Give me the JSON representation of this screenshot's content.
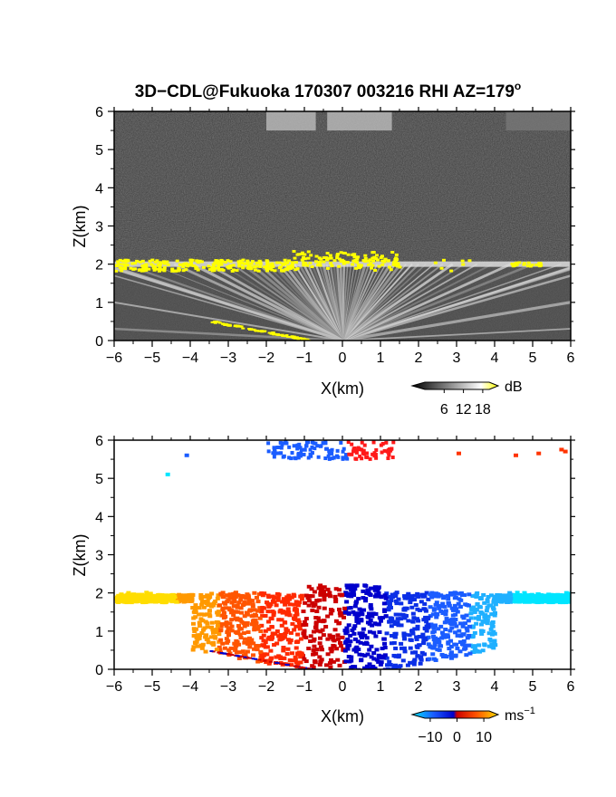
{
  "title": {
    "main": "3D−CDL@Fukuoka 170307 003216 RHI AZ=179",
    "sup": "o"
  },
  "chart_data": [
    {
      "type": "heatmap",
      "name": "reflectivity",
      "xlabel": "X(km)",
      "ylabel": "Z(km)",
      "xlim": [
        -6,
        6
      ],
      "ylim": [
        0,
        6
      ],
      "xticks": [
        "−6",
        "−5",
        "−4",
        "−3",
        "−2",
        "−1",
        "0",
        "1",
        "2",
        "3",
        "4",
        "5",
        "6"
      ],
      "yticks": [
        "0",
        "1",
        "2",
        "3",
        "4",
        "5",
        "6"
      ],
      "colorbar": {
        "unit": "dB",
        "tick_labels": [
          "6",
          "12",
          "18"
        ],
        "tick_values": [
          6,
          12,
          18
        ],
        "range": [
          0,
          20
        ],
        "colors": [
          "#000000",
          "#ffffff",
          "#ffff00"
        ]
      },
      "features": {
        "boundary_layer_top_km": 2.0,
        "high_signal_km": 2.0,
        "cloud_top_band_km": [
          5.5,
          6.0
        ],
        "background": "#3a3a3a",
        "highlight_color": "#ffff00"
      }
    },
    {
      "type": "heatmap",
      "name": "doppler_velocity",
      "xlabel": "X(km)",
      "ylabel": "Z(km)",
      "xlim": [
        -6,
        6
      ],
      "ylim": [
        0,
        6
      ],
      "xticks": [
        "−6",
        "−5",
        "−4",
        "−3",
        "−2",
        "−1",
        "0",
        "1",
        "2",
        "3",
        "4",
        "5",
        "6"
      ],
      "yticks": [
        "0",
        "1",
        "2",
        "3",
        "4",
        "5",
        "6"
      ],
      "colorbar": {
        "unit": "ms",
        "unit_sup": "−1",
        "tick_labels": [
          "−10",
          "0",
          "10"
        ],
        "tick_values": [
          -10,
          0,
          10
        ],
        "range": [
          -12,
          12
        ],
        "colors": [
          "#00e5ff",
          "#1a5cff",
          "#0000cc",
          "#cc0000",
          "#ff5500",
          "#ffdd00"
        ]
      },
      "features": {
        "boundary_layer_top_km": 2.0,
        "negative_side": "x>0 (blue)",
        "positive_side": "x<0 (red/yellow)",
        "upper_echoes_km": [
          5.5,
          6.0
        ]
      }
    }
  ]
}
